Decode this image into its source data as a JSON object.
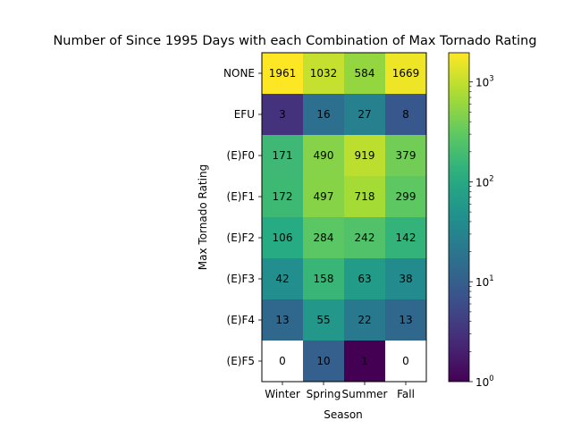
{
  "chart_data": {
    "type": "heatmap",
    "title": "Number of Since 1995 Days with each Combination of Max Tornado Rating",
    "xlabel": "Season",
    "ylabel": "Max Tornado Rating",
    "x_categories": [
      "Winter",
      "Spring",
      "Summer",
      "Fall"
    ],
    "y_categories": [
      "NONE",
      "EFU",
      "(E)F0",
      "(E)F1",
      "(E)F2",
      "(E)F3",
      "(E)F4",
      "(E)F5"
    ],
    "values": [
      [
        1961,
        1032,
        584,
        1669
      ],
      [
        3,
        16,
        27,
        8
      ],
      [
        171,
        490,
        919,
        379
      ],
      [
        172,
        497,
        718,
        299
      ],
      [
        106,
        284,
        242,
        142
      ],
      [
        42,
        158,
        63,
        38
      ],
      [
        13,
        55,
        22,
        13
      ],
      [
        0,
        10,
        1,
        0
      ]
    ],
    "color_scale": "log",
    "colormap": "viridis",
    "colorbar": {
      "range": [
        1,
        1961
      ],
      "ticks": [
        {
          "base": "10",
          "exp": "0",
          "value": 1
        },
        {
          "base": "10",
          "exp": "1",
          "value": 10
        },
        {
          "base": "10",
          "exp": "2",
          "value": 100
        },
        {
          "base": "10",
          "exp": "3",
          "value": 1000
        }
      ]
    },
    "zero_color": "#ffffff",
    "grid": false
  }
}
